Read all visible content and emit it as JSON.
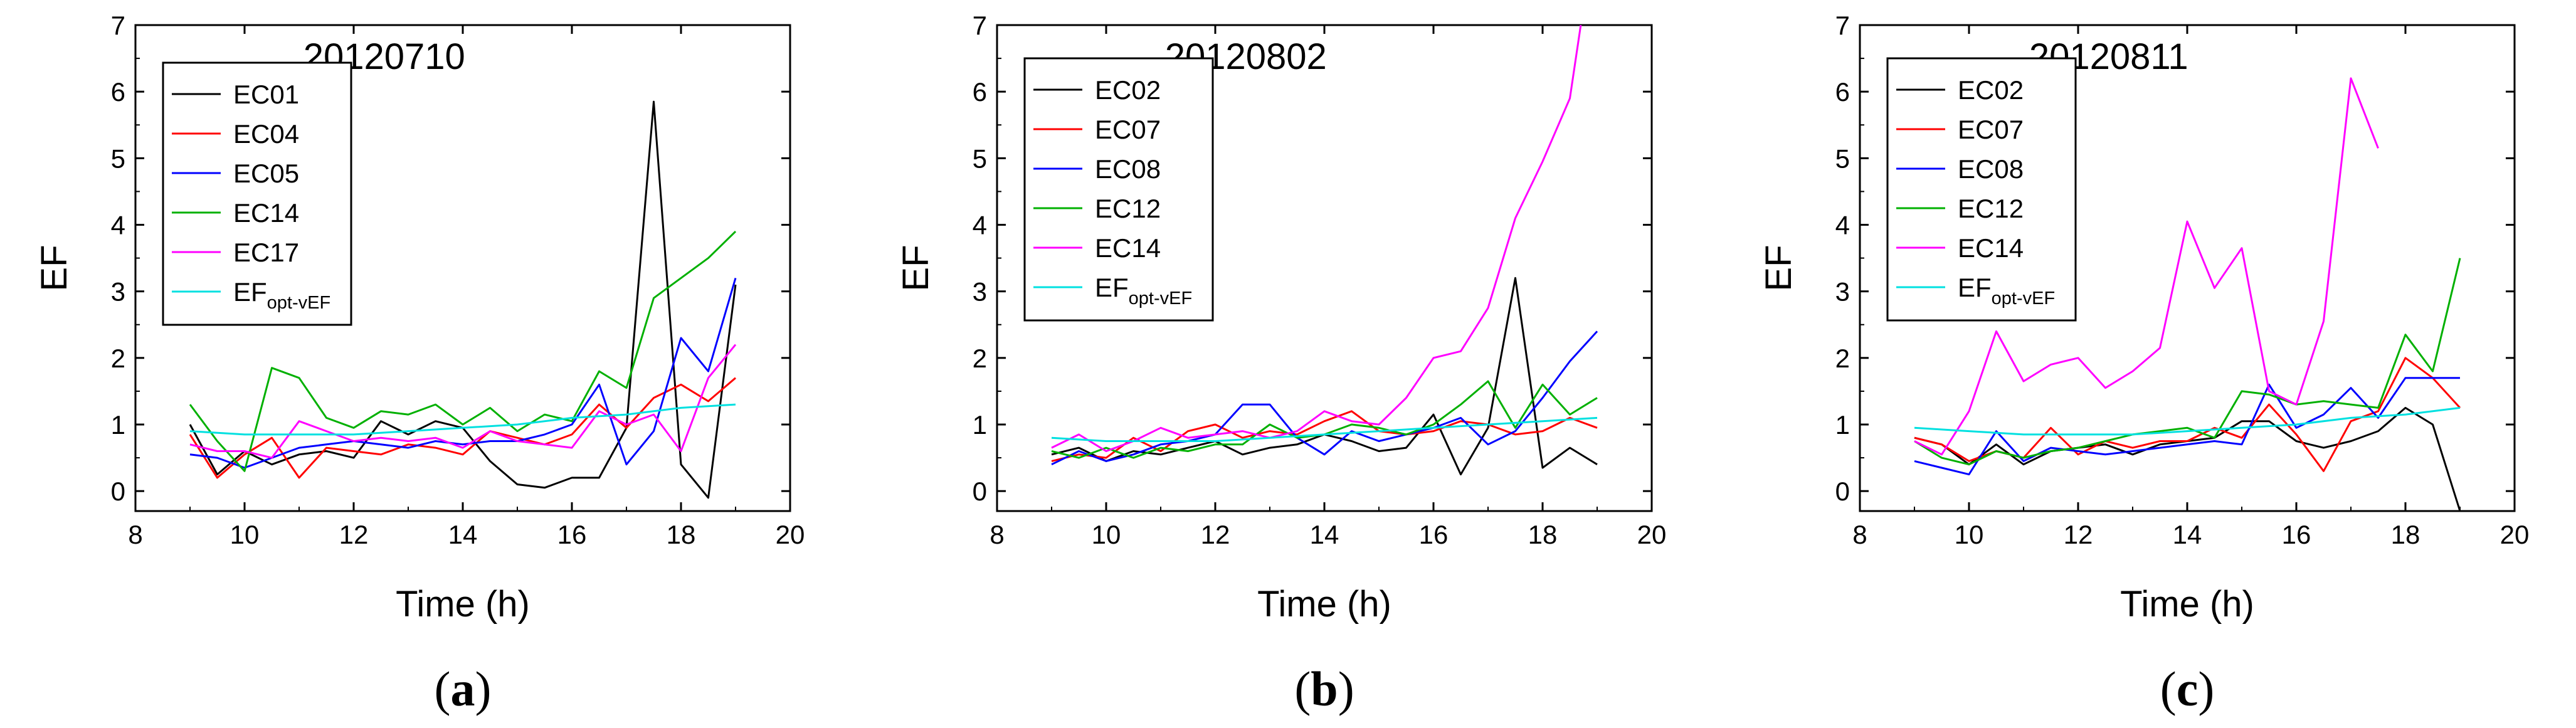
{
  "chart_data": [
    {
      "type": "line",
      "title": "20120710",
      "panel_label": {
        "open": "(",
        "letter": "a",
        "close": ")"
      },
      "xlabel": "Time (h)",
      "ylabel": "EF",
      "xlim": [
        8,
        20
      ],
      "ylim": [
        -0.3,
        7
      ],
      "xticks": [
        8,
        10,
        12,
        14,
        16,
        18,
        20
      ],
      "yticks": [
        0,
        1,
        2,
        3,
        4,
        5,
        6,
        7
      ],
      "legend_position": "top-left",
      "series": [
        {
          "name": "EC01",
          "color": "#000000",
          "x": [
            9,
            9.5,
            10,
            10.5,
            11,
            11.5,
            12,
            12.5,
            13,
            13.5,
            14,
            14.5,
            15,
            15.5,
            16,
            16.5,
            17,
            17.5,
            18,
            18.5,
            19
          ],
          "values": [
            1.0,
            0.25,
            0.6,
            0.4,
            0.55,
            0.6,
            0.5,
            1.05,
            0.85,
            1.05,
            0.95,
            0.45,
            0.1,
            0.05,
            0.2,
            0.2,
            0.95,
            5.85,
            0.4,
            -0.1,
            3.1
          ]
        },
        {
          "name": "EC04",
          "color": "#ff0000",
          "x": [
            9,
            9.5,
            10,
            10.5,
            11,
            11.5,
            12,
            12.5,
            13,
            13.5,
            14,
            14.5,
            15,
            15.5,
            16,
            16.5,
            17,
            17.5,
            18,
            18.5,
            19
          ],
          "values": [
            0.85,
            0.2,
            0.55,
            0.8,
            0.2,
            0.65,
            0.6,
            0.55,
            0.7,
            0.65,
            0.55,
            0.9,
            0.8,
            0.7,
            0.85,
            1.3,
            0.95,
            1.4,
            1.6,
            1.35,
            1.7
          ]
        },
        {
          "name": "EC05",
          "color": "#0000ff",
          "x": [
            9,
            9.5,
            10,
            10.5,
            11,
            11.5,
            12,
            12.5,
            13,
            13.5,
            14,
            14.5,
            15,
            15.5,
            16,
            16.5,
            17,
            17.5,
            18,
            18.5,
            19
          ],
          "values": [
            0.55,
            0.5,
            0.35,
            0.5,
            0.65,
            0.7,
            0.75,
            0.7,
            0.65,
            0.75,
            0.7,
            0.75,
            0.75,
            0.85,
            1.0,
            1.6,
            0.4,
            0.9,
            2.3,
            1.8,
            3.2
          ]
        },
        {
          "name": "EC14",
          "color": "#00b000",
          "x": [
            9,
            9.5,
            10,
            10.5,
            11,
            11.5,
            12,
            12.5,
            13,
            13.5,
            14,
            14.5,
            15,
            15.5,
            16,
            16.5,
            17,
            17.5,
            18,
            18.5,
            19
          ],
          "values": [
            1.3,
            0.75,
            0.3,
            1.85,
            1.7,
            1.1,
            0.95,
            1.2,
            1.15,
            1.3,
            1.0,
            1.25,
            0.9,
            1.15,
            1.05,
            1.8,
            1.55,
            2.9,
            3.2,
            3.5,
            3.9
          ]
        },
        {
          "name": "EC17",
          "color": "#ff00ff",
          "x": [
            9,
            9.5,
            10,
            10.5,
            11,
            11.5,
            12,
            12.5,
            13,
            13.5,
            14,
            14.5,
            15,
            15.5,
            16,
            16.5,
            17,
            17.5,
            18,
            18.5,
            19
          ],
          "values": [
            0.7,
            0.6,
            0.6,
            0.5,
            1.05,
            0.9,
            0.75,
            0.8,
            0.75,
            0.8,
            0.65,
            0.9,
            0.75,
            0.7,
            0.65,
            1.2,
            1.0,
            1.15,
            0.6,
            1.7,
            2.2
          ]
        },
        {
          "name": "EF",
          "subscript": "opt-vEF",
          "color": "#00e0e0",
          "x": [
            9,
            10,
            11,
            12,
            13,
            14,
            15,
            16,
            17,
            18,
            19
          ],
          "values": [
            0.9,
            0.85,
            0.85,
            0.85,
            0.9,
            0.95,
            1.0,
            1.1,
            1.15,
            1.25,
            1.3
          ]
        }
      ]
    },
    {
      "type": "line",
      "title": "20120802",
      "panel_label": {
        "open": "(",
        "letter": "b",
        "close": ")"
      },
      "xlabel": "Time (h)",
      "ylabel": "EF",
      "xlim": [
        8,
        20
      ],
      "ylim": [
        -0.3,
        7
      ],
      "xticks": [
        8,
        10,
        12,
        14,
        16,
        18,
        20
      ],
      "yticks": [
        0,
        1,
        2,
        3,
        4,
        5,
        6,
        7
      ],
      "legend_position": "top-left",
      "series": [
        {
          "name": "EC02",
          "color": "#000000",
          "x": [
            9,
            9.5,
            10,
            10.5,
            11,
            11.5,
            12,
            12.5,
            13,
            13.5,
            14,
            14.5,
            15,
            15.5,
            16,
            16.5,
            17,
            17.5,
            18,
            18.5,
            19
          ],
          "values": [
            0.55,
            0.65,
            0.45,
            0.6,
            0.55,
            0.65,
            0.75,
            0.55,
            0.65,
            0.7,
            0.85,
            0.75,
            0.6,
            0.65,
            1.15,
            0.25,
            0.95,
            3.2,
            0.35,
            0.65,
            0.4
          ]
        },
        {
          "name": "EC07",
          "color": "#ff0000",
          "x": [
            9,
            9.5,
            10,
            10.5,
            11,
            11.5,
            12,
            12.5,
            13,
            13.5,
            14,
            14.5,
            15,
            15.5,
            16,
            16.5,
            17,
            17.5,
            18,
            18.5,
            19
          ],
          "values": [
            0.45,
            0.55,
            0.5,
            0.8,
            0.6,
            0.9,
            1.0,
            0.8,
            0.9,
            0.85,
            1.05,
            1.2,
            0.9,
            0.85,
            0.9,
            1.05,
            1.0,
            0.85,
            0.9,
            1.1,
            0.95
          ]
        },
        {
          "name": "EC08",
          "color": "#0000ff",
          "x": [
            9,
            9.5,
            10,
            10.5,
            11,
            11.5,
            12,
            12.5,
            13,
            13.5,
            14,
            14.5,
            15,
            15.5,
            16,
            16.5,
            17,
            17.5,
            18,
            18.5,
            19
          ],
          "values": [
            0.4,
            0.6,
            0.45,
            0.55,
            0.7,
            0.75,
            0.85,
            1.3,
            1.3,
            0.8,
            0.55,
            0.9,
            0.75,
            0.85,
            0.95,
            1.1,
            0.7,
            0.9,
            1.4,
            1.95,
            2.4
          ]
        },
        {
          "name": "EC12",
          "color": "#00b000",
          "x": [
            9,
            9.5,
            10,
            10.5,
            11,
            11.5,
            12,
            12.5,
            13,
            13.5,
            14,
            14.5,
            15,
            15.5,
            16,
            16.5,
            17,
            17.5,
            18,
            18.5,
            19
          ],
          "values": [
            0.6,
            0.5,
            0.65,
            0.5,
            0.65,
            0.6,
            0.7,
            0.7,
            1.0,
            0.8,
            0.85,
            1.0,
            0.95,
            0.85,
            1.0,
            1.3,
            1.65,
            0.95,
            1.6,
            1.15,
            1.4
          ]
        },
        {
          "name": "EC14",
          "color": "#ff00ff",
          "x": [
            9,
            9.5,
            10,
            10.5,
            11,
            11.5,
            12,
            12.5,
            13,
            13.5,
            14,
            14.5,
            15,
            15.5,
            16,
            16.5,
            17,
            17.5,
            18,
            18.5,
            18.7
          ],
          "values": [
            0.65,
            0.85,
            0.6,
            0.75,
            0.95,
            0.8,
            0.85,
            0.9,
            0.8,
            0.9,
            1.2,
            1.05,
            1.0,
            1.4,
            2.0,
            2.1,
            2.75,
            4.1,
            4.95,
            5.9,
            7.0
          ]
        },
        {
          "name": "EF",
          "subscript": "opt-vEF",
          "color": "#00e0e0",
          "x": [
            9,
            10,
            11,
            12,
            13,
            14,
            15,
            16,
            17,
            18,
            19
          ],
          "values": [
            0.8,
            0.75,
            0.75,
            0.75,
            0.8,
            0.85,
            0.9,
            0.95,
            1.0,
            1.05,
            1.1
          ]
        }
      ]
    },
    {
      "type": "line",
      "title": "20120811",
      "panel_label": {
        "open": "(",
        "letter": "c",
        "close": ")"
      },
      "xlabel": "Time (h)",
      "ylabel": "EF",
      "xlim": [
        8,
        20
      ],
      "ylim": [
        -0.3,
        7
      ],
      "xticks": [
        8,
        10,
        12,
        14,
        16,
        18,
        20
      ],
      "yticks": [
        0,
        1,
        2,
        3,
        4,
        5,
        6,
        7
      ],
      "legend_position": "top-left",
      "series": [
        {
          "name": "EC02",
          "color": "#000000",
          "x": [
            9,
            9.5,
            10,
            10.5,
            11,
            11.5,
            12,
            12.5,
            13,
            13.5,
            14,
            14.5,
            15,
            15.5,
            16,
            16.5,
            17,
            17.5,
            18,
            18.5,
            19
          ],
          "values": [
            0.8,
            0.7,
            0.4,
            0.7,
            0.4,
            0.6,
            0.65,
            0.7,
            0.55,
            0.7,
            0.75,
            0.8,
            1.05,
            1.05,
            0.75,
            0.65,
            0.75,
            0.9,
            1.25,
            1.0,
            -0.3
          ]
        },
        {
          "name": "EC07",
          "color": "#ff0000",
          "x": [
            9,
            9.5,
            10,
            10.5,
            11,
            11.5,
            12,
            12.5,
            13,
            13.5,
            14,
            14.5,
            15,
            15.5,
            16,
            16.5,
            17,
            17.5,
            18,
            18.5,
            19
          ],
          "values": [
            0.8,
            0.7,
            0.45,
            0.6,
            0.5,
            0.95,
            0.55,
            0.75,
            0.65,
            0.75,
            0.75,
            0.95,
            0.8,
            1.3,
            0.85,
            0.3,
            1.05,
            1.2,
            2.0,
            1.7,
            1.25
          ]
        },
        {
          "name": "EC08",
          "color": "#0000ff",
          "x": [
            9,
            9.5,
            10,
            10.5,
            11,
            11.5,
            12,
            12.5,
            13,
            13.5,
            14,
            14.5,
            15,
            15.5,
            16,
            16.5,
            17,
            17.5,
            18,
            18.5,
            19
          ],
          "values": [
            0.45,
            0.35,
            0.25,
            0.9,
            0.45,
            0.65,
            0.6,
            0.55,
            0.6,
            0.65,
            0.7,
            0.75,
            0.7,
            1.6,
            0.95,
            1.15,
            1.55,
            1.1,
            1.7,
            1.7,
            1.7
          ]
        },
        {
          "name": "EC12",
          "color": "#00b000",
          "x": [
            9,
            9.5,
            10,
            10.5,
            11,
            11.5,
            12,
            12.5,
            13,
            13.5,
            14,
            14.5,
            15,
            15.5,
            16,
            16.5,
            17,
            17.5,
            18,
            18.5,
            19
          ],
          "values": [
            0.75,
            0.5,
            0.4,
            0.6,
            0.5,
            0.6,
            0.65,
            0.75,
            0.85,
            0.9,
            0.95,
            0.8,
            1.5,
            1.45,
            1.3,
            1.35,
            1.3,
            1.25,
            2.35,
            1.8,
            3.5
          ]
        },
        {
          "name": "EC14",
          "color": "#ff00ff",
          "x": [
            9,
            9.5,
            10,
            10.5,
            11,
            11.5,
            12,
            12.5,
            13,
            13.5,
            14,
            14.5,
            15,
            15.5,
            16,
            16.5,
            17,
            17.5
          ],
          "values": [
            0.75,
            0.55,
            1.2,
            2.4,
            1.65,
            1.9,
            2.0,
            1.55,
            1.8,
            2.15,
            4.05,
            3.05,
            3.65,
            1.5,
            1.3,
            2.55,
            6.2,
            5.15
          ]
        },
        {
          "name": "EF",
          "subscript": "opt-vEF",
          "color": "#00e0e0",
          "x": [
            9,
            10,
            11,
            12,
            13,
            14,
            15,
            16,
            17,
            18,
            19
          ],
          "values": [
            0.95,
            0.9,
            0.85,
            0.85,
            0.85,
            0.9,
            0.95,
            1.0,
            1.1,
            1.15,
            1.25
          ]
        }
      ]
    }
  ]
}
